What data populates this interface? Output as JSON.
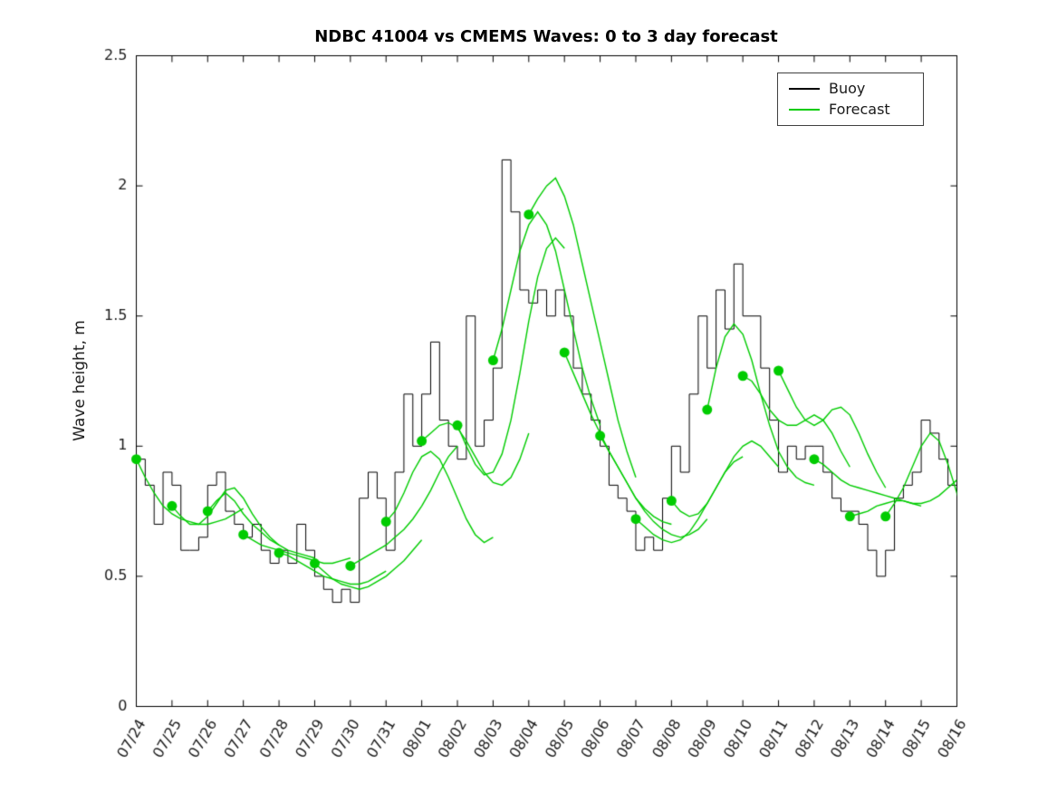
{
  "figure": {
    "background": "#ffffff"
  },
  "legend": {
    "items": [
      {
        "label": "Buoy",
        "color": "#000000"
      },
      {
        "label": "Forecast",
        "color": "#00cc00"
      }
    ]
  },
  "chart_data": {
    "type": "line",
    "title": "NDBC 41004 vs CMEMS Waves: 0 to 3 day forecast",
    "xlabel": "",
    "ylabel": "Wave height, m",
    "ylim": [
      0,
      2.5
    ],
    "yticks": [
      0,
      0.5,
      1,
      1.5,
      2,
      2.5
    ],
    "ytick_labels": [
      "0",
      "0.5",
      "1",
      "1.5",
      "2",
      "2.5"
    ],
    "xlim_days": [
      0,
      23
    ],
    "xtick_days": [
      0,
      1,
      2,
      3,
      4,
      5,
      6,
      7,
      8,
      9,
      10,
      11,
      12,
      13,
      14,
      15,
      16,
      17,
      18,
      19,
      20,
      21,
      22,
      23
    ],
    "xtick_labels": [
      "07/24",
      "07/25",
      "07/26",
      "07/27",
      "07/28",
      "07/29",
      "07/30",
      "07/31",
      "08/01",
      "08/02",
      "08/03",
      "08/04",
      "08/05",
      "08/06",
      "08/07",
      "08/08",
      "08/09",
      "08/10",
      "08/11",
      "08/12",
      "08/13",
      "08/14",
      "08/15",
      "08/16"
    ],
    "grid": false,
    "legend_position": "top-right",
    "series": {
      "buoy": {
        "name": "Buoy",
        "color": "#000000",
        "style": "stairs",
        "start_day": 0,
        "step_days": 0.25,
        "values": [
          0.95,
          0.85,
          0.7,
          0.9,
          0.85,
          0.6,
          0.6,
          0.65,
          0.85,
          0.9,
          0.75,
          0.7,
          0.65,
          0.7,
          0.6,
          0.55,
          0.6,
          0.55,
          0.7,
          0.6,
          0.5,
          0.45,
          0.4,
          0.45,
          0.4,
          0.8,
          0.9,
          0.8,
          0.6,
          0.9,
          1.2,
          1.0,
          1.2,
          1.4,
          1.1,
          1.0,
          0.95,
          1.5,
          1.0,
          1.1,
          1.3,
          2.1,
          1.9,
          1.6,
          1.55,
          1.6,
          1.5,
          1.6,
          1.5,
          1.3,
          1.2,
          1.1,
          1.0,
          0.85,
          0.8,
          0.75,
          0.6,
          0.65,
          0.6,
          0.8,
          1.0,
          0.9,
          1.2,
          1.5,
          1.3,
          1.6,
          1.45,
          1.7,
          1.5,
          1.5,
          1.3,
          1.1,
          0.9,
          1.0,
          0.95,
          1.0,
          1.0,
          0.9,
          0.8,
          0.75,
          0.75,
          0.7,
          0.6,
          0.5,
          0.6,
          0.8,
          0.85,
          0.9,
          1.1,
          1.05,
          0.95,
          0.85,
          0.7,
          0.65
        ]
      },
      "forecast_runs": {
        "name": "Forecast",
        "color": "#00cc00",
        "marker": "start-dot",
        "marker_radius_px": 5.5,
        "step_days": 0.25,
        "runs": [
          {
            "start_day": 0,
            "values": [
              0.95,
              0.88,
              0.82,
              0.77,
              0.74,
              0.72,
              0.71,
              0.7,
              0.7,
              0.71,
              0.72,
              0.74,
              0.76
            ]
          },
          {
            "start_day": 1,
            "values": [
              0.77,
              0.73,
              0.7,
              0.7,
              0.73,
              0.78,
              0.83,
              0.84,
              0.8,
              0.74,
              0.69,
              0.65,
              0.62
            ]
          },
          {
            "start_day": 2,
            "values": [
              0.75,
              0.79,
              0.82,
              0.79,
              0.74,
              0.7,
              0.67,
              0.64,
              0.62,
              0.6,
              0.59,
              0.58,
              0.57
            ]
          },
          {
            "start_day": 3,
            "values": [
              0.66,
              0.64,
              0.62,
              0.61,
              0.6,
              0.59,
              0.58,
              0.57,
              0.56,
              0.55,
              0.55,
              0.56,
              0.57
            ]
          },
          {
            "start_day": 4,
            "values": [
              0.59,
              0.58,
              0.56,
              0.54,
              0.52,
              0.5,
              0.49,
              0.48,
              0.47,
              0.47,
              0.48,
              0.5,
              0.52
            ]
          },
          {
            "start_day": 5,
            "values": [
              0.55,
              0.52,
              0.49,
              0.47,
              0.46,
              0.45,
              0.46,
              0.48,
              0.5,
              0.53,
              0.56,
              0.6,
              0.64
            ]
          },
          {
            "start_day": 6,
            "values": [
              0.54,
              0.56,
              0.58,
              0.6,
              0.62,
              0.65,
              0.68,
              0.72,
              0.77,
              0.83,
              0.9,
              0.96,
              1.0
            ]
          },
          {
            "start_day": 7,
            "values": [
              0.71,
              0.75,
              0.82,
              0.9,
              0.96,
              0.98,
              0.95,
              0.88,
              0.8,
              0.72,
              0.66,
              0.63,
              0.65
            ]
          },
          {
            "start_day": 8,
            "values": [
              1.02,
              1.05,
              1.08,
              1.09,
              1.07,
              1.02,
              0.96,
              0.9,
              0.86,
              0.85,
              0.88,
              0.95,
              1.05
            ]
          },
          {
            "start_day": 9,
            "values": [
              1.08,
              1.0,
              0.93,
              0.89,
              0.9,
              0.97,
              1.1,
              1.28,
              1.48,
              1.65,
              1.76,
              1.8,
              1.76
            ]
          },
          {
            "start_day": 10,
            "values": [
              1.33,
              1.45,
              1.6,
              1.75,
              1.85,
              1.9,
              1.85,
              1.75,
              1.6,
              1.45,
              1.3,
              1.18,
              1.08
            ]
          },
          {
            "start_day": 11,
            "values": [
              1.89,
              1.95,
              2.0,
              2.03,
              1.96,
              1.85,
              1.7,
              1.55,
              1.4,
              1.25,
              1.1,
              0.98,
              0.88
            ]
          },
          {
            "start_day": 12,
            "values": [
              1.36,
              1.28,
              1.2,
              1.12,
              1.05,
              0.98,
              0.92,
              0.86,
              0.8,
              0.76,
              0.73,
              0.71,
              0.7
            ]
          },
          {
            "start_day": 13,
            "values": [
              1.04,
              0.98,
              0.92,
              0.86,
              0.8,
              0.75,
              0.71,
              0.68,
              0.66,
              0.65,
              0.66,
              0.68,
              0.72
            ]
          },
          {
            "start_day": 14,
            "values": [
              0.72,
              0.69,
              0.66,
              0.64,
              0.63,
              0.64,
              0.67,
              0.72,
              0.78,
              0.84,
              0.9,
              0.94,
              0.96
            ]
          },
          {
            "start_day": 15,
            "values": [
              0.79,
              0.75,
              0.73,
              0.74,
              0.78,
              0.84,
              0.9,
              0.96,
              1.0,
              1.02,
              1.0,
              0.96,
              0.92
            ]
          },
          {
            "start_day": 16,
            "values": [
              1.14,
              1.3,
              1.42,
              1.47,
              1.43,
              1.33,
              1.2,
              1.08,
              0.98,
              0.92,
              0.88,
              0.86,
              0.85
            ]
          },
          {
            "start_day": 17,
            "values": [
              1.27,
              1.25,
              1.2,
              1.14,
              1.1,
              1.08,
              1.08,
              1.1,
              1.12,
              1.1,
              1.05,
              0.98,
              0.92
            ]
          },
          {
            "start_day": 18,
            "values": [
              1.29,
              1.22,
              1.15,
              1.1,
              1.08,
              1.1,
              1.14,
              1.15,
              1.12,
              1.05,
              0.97,
              0.9,
              0.84
            ]
          },
          {
            "start_day": 19,
            "values": [
              0.95,
              0.93,
              0.9,
              0.87,
              0.85,
              0.84,
              0.83,
              0.82,
              0.81,
              0.8,
              0.79,
              0.78,
              0.77
            ]
          },
          {
            "start_day": 20,
            "values": [
              0.73,
              0.74,
              0.75,
              0.77,
              0.78,
              0.79,
              0.79,
              0.78,
              0.78,
              0.79,
              0.81,
              0.84,
              0.87
            ]
          },
          {
            "start_day": 21,
            "values": [
              0.73,
              0.78,
              0.84,
              0.92,
              1.0,
              1.05,
              1.02,
              0.93,
              0.82,
              0.7,
              0.64,
              0.62,
              0.61
            ]
          }
        ]
      }
    }
  }
}
